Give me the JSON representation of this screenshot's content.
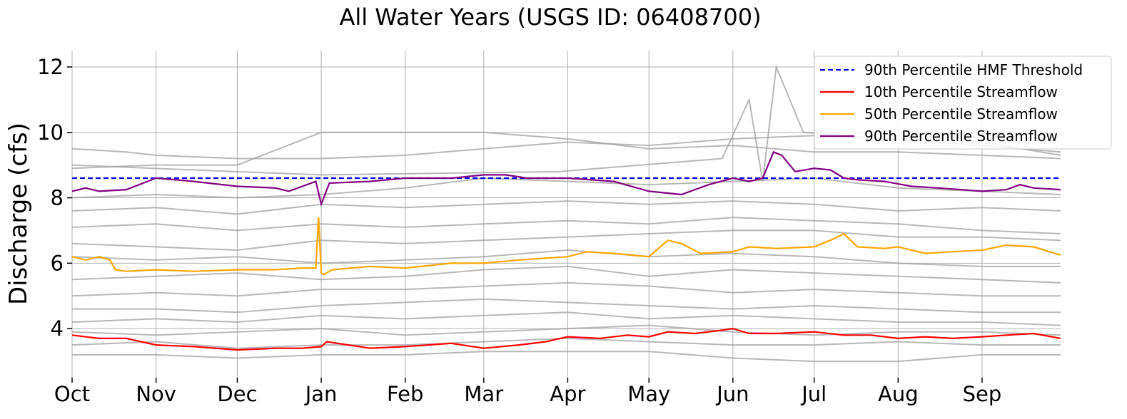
{
  "chart_data": {
    "type": "line",
    "title": "All Water Years (USGS ID: 06408700)",
    "xlabel": "",
    "ylabel": "Discharge (cfs)",
    "xlim": [
      0,
      365
    ],
    "ylim": [
      2.5,
      12.5
    ],
    "x_unit": "day of water year (Oct 1 = 0)",
    "xticks": [
      {
        "label": "Oct",
        "x": 0
      },
      {
        "label": "Nov",
        "x": 31
      },
      {
        "label": "Dec",
        "x": 61
      },
      {
        "label": "Jan",
        "x": 92
      },
      {
        "label": "Feb",
        "x": 123
      },
      {
        "label": "Mar",
        "x": 152
      },
      {
        "label": "Apr",
        "x": 183
      },
      {
        "label": "May",
        "x": 213
      },
      {
        "label": "Jun",
        "x": 244
      },
      {
        "label": "Jul",
        "x": 274
      },
      {
        "label": "Aug",
        "x": 305
      },
      {
        "label": "Sep",
        "x": 336
      }
    ],
    "yticks": [
      4,
      6,
      8,
      10,
      12
    ],
    "grid": true,
    "legend_position": "top-right",
    "series": [
      {
        "name": "90th Percentile HMF Threshold",
        "color": "#0000ff",
        "style": "dashed",
        "x": [
          0,
          365
        ],
        "y": [
          8.6,
          8.6
        ]
      },
      {
        "name": "10th Percentile Streamflow",
        "color": "#ff0000",
        "style": "solid",
        "x": [
          0,
          10,
          20,
          31,
          45,
          61,
          75,
          85,
          92,
          94,
          110,
          123,
          140,
          152,
          165,
          175,
          183,
          195,
          205,
          213,
          220,
          230,
          240,
          244,
          250,
          260,
          274,
          285,
          295,
          305,
          315,
          325,
          336,
          345,
          355,
          365
        ],
        "y": [
          3.8,
          3.7,
          3.7,
          3.5,
          3.45,
          3.35,
          3.4,
          3.4,
          3.45,
          3.6,
          3.4,
          3.45,
          3.55,
          3.4,
          3.5,
          3.6,
          3.75,
          3.7,
          3.8,
          3.75,
          3.9,
          3.85,
          3.95,
          4.0,
          3.85,
          3.85,
          3.9,
          3.8,
          3.8,
          3.7,
          3.75,
          3.7,
          3.75,
          3.8,
          3.85,
          3.7
        ]
      },
      {
        "name": "50th Percentile Streamflow",
        "color": "#ffa500",
        "style": "solid",
        "x": [
          0,
          5,
          10,
          14,
          16,
          20,
          31,
          45,
          61,
          75,
          85,
          90,
          91,
          92,
          93,
          96,
          110,
          123,
          140,
          152,
          165,
          183,
          190,
          200,
          213,
          220,
          225,
          232,
          244,
          250,
          260,
          274,
          280,
          285,
          290,
          300,
          305,
          315,
          325,
          336,
          345,
          355,
          365
        ],
        "y": [
          6.2,
          6.1,
          6.2,
          6.1,
          5.8,
          5.75,
          5.8,
          5.75,
          5.8,
          5.8,
          5.85,
          5.85,
          7.4,
          5.7,
          5.65,
          5.8,
          5.9,
          5.85,
          6.0,
          6.0,
          6.1,
          6.2,
          6.35,
          6.3,
          6.2,
          6.7,
          6.6,
          6.3,
          6.35,
          6.5,
          6.45,
          6.5,
          6.7,
          6.9,
          6.5,
          6.45,
          6.5,
          6.3,
          6.35,
          6.4,
          6.55,
          6.5,
          6.25
        ]
      },
      {
        "name": "90th Percentile Streamflow",
        "color": "#800080",
        "style": "solid",
        "x": [
          0,
          5,
          10,
          20,
          31,
          45,
          61,
          75,
          80,
          90,
          92,
          95,
          110,
          123,
          140,
          152,
          160,
          168,
          183,
          200,
          213,
          225,
          235,
          244,
          250,
          255,
          259,
          262,
          267,
          274,
          280,
          285,
          290,
          300,
          310,
          320,
          336,
          345,
          350,
          355,
          365
        ],
        "y": [
          8.2,
          8.3,
          8.2,
          8.25,
          8.6,
          8.5,
          8.35,
          8.3,
          8.2,
          8.5,
          7.8,
          8.45,
          8.5,
          8.6,
          8.6,
          8.7,
          8.7,
          8.6,
          8.6,
          8.5,
          8.2,
          8.1,
          8.4,
          8.6,
          8.5,
          8.6,
          9.4,
          9.3,
          8.8,
          8.9,
          8.85,
          8.6,
          8.55,
          8.5,
          8.35,
          8.3,
          8.2,
          8.25,
          8.4,
          8.3,
          8.25
        ]
      }
    ],
    "background_series": [
      {
        "x": [
          0,
          20,
          31,
          61,
          92,
          123,
          152,
          183,
          213,
          244,
          274,
          305,
          336,
          365
        ],
        "y": [
          9.5,
          9.4,
          9.3,
          9.2,
          9.2,
          9.3,
          9.5,
          9.7,
          9.6,
          9.8,
          9.9,
          9.8,
          9.7,
          9.3
        ]
      },
      {
        "x": [
          0,
          31,
          61,
          92,
          123,
          152,
          183,
          213,
          244,
          274,
          305,
          336,
          365
        ],
        "y": [
          8.9,
          9.0,
          9.0,
          10.0,
          10.0,
          10.0,
          9.8,
          9.5,
          9.6,
          9.4,
          9.4,
          9.3,
          9.2
        ]
      },
      {
        "x": [
          0,
          31,
          61,
          92,
          123,
          152,
          183,
          213,
          244,
          274,
          305,
          336,
          365
        ],
        "y": [
          8.0,
          8.1,
          8.0,
          8.1,
          8.3,
          8.6,
          8.5,
          8.4,
          8.5,
          8.6,
          8.3,
          8.2,
          8.1
        ]
      },
      {
        "x": [
          0,
          31,
          61,
          92,
          123,
          152,
          183,
          213,
          244,
          274,
          305,
          336,
          365
        ],
        "y": [
          7.6,
          7.7,
          7.5,
          7.8,
          7.7,
          7.8,
          7.9,
          7.8,
          7.9,
          7.8,
          7.6,
          7.7,
          7.6
        ]
      },
      {
        "x": [
          0,
          31,
          61,
          92,
          123,
          152,
          183,
          213,
          244,
          274,
          305,
          336,
          365
        ],
        "y": [
          7.1,
          7.2,
          7.0,
          7.2,
          7.1,
          7.2,
          7.3,
          7.2,
          7.4,
          7.3,
          7.2,
          7.0,
          6.9
        ]
      },
      {
        "x": [
          0,
          31,
          61,
          92,
          123,
          152,
          183,
          213,
          244,
          274,
          305,
          336,
          365
        ],
        "y": [
          6.6,
          6.5,
          6.4,
          6.7,
          6.6,
          6.7,
          6.8,
          6.9,
          7.0,
          7.0,
          6.8,
          6.8,
          6.7
        ]
      },
      {
        "x": [
          0,
          31,
          61,
          92,
          123,
          152,
          183,
          213,
          244,
          274,
          305,
          336,
          365
        ],
        "y": [
          6.2,
          6.1,
          6.2,
          6.0,
          6.1,
          6.2,
          6.4,
          6.2,
          6.3,
          6.2,
          6.0,
          5.9,
          5.9
        ]
      },
      {
        "x": [
          0,
          31,
          61,
          92,
          123,
          152,
          183,
          213,
          244,
          274,
          305,
          336,
          365
        ],
        "y": [
          5.5,
          5.6,
          5.7,
          5.5,
          5.6,
          5.8,
          5.9,
          5.6,
          5.8,
          5.7,
          5.6,
          5.5,
          5.4
        ]
      },
      {
        "x": [
          0,
          31,
          61,
          92,
          123,
          152,
          183,
          213,
          244,
          274,
          305,
          336,
          365
        ],
        "y": [
          5.0,
          5.1,
          5.0,
          5.2,
          5.2,
          5.3,
          5.4,
          5.3,
          5.1,
          5.2,
          5.1,
          5.0,
          5.0
        ]
      },
      {
        "x": [
          0,
          31,
          61,
          92,
          123,
          152,
          183,
          213,
          244,
          274,
          305,
          336,
          365
        ],
        "y": [
          4.6,
          4.6,
          4.5,
          4.7,
          4.8,
          4.9,
          4.8,
          4.7,
          4.6,
          4.7,
          4.6,
          4.5,
          4.5
        ]
      },
      {
        "x": [
          0,
          31,
          61,
          92,
          123,
          152,
          183,
          213,
          244,
          274,
          305,
          336,
          365
        ],
        "y": [
          4.2,
          4.3,
          4.2,
          4.4,
          4.3,
          4.4,
          4.5,
          4.3,
          4.4,
          4.3,
          4.2,
          4.2,
          4.1
        ]
      },
      {
        "x": [
          0,
          31,
          61,
          92,
          123,
          152,
          183,
          213,
          244,
          274,
          305,
          336,
          365
        ],
        "y": [
          3.9,
          3.8,
          3.9,
          4.0,
          3.8,
          3.9,
          4.0,
          4.1,
          3.9,
          3.8,
          3.9,
          3.9,
          3.8
        ]
      },
      {
        "x": [
          0,
          31,
          61,
          92,
          123,
          152,
          183,
          213,
          244,
          274,
          305,
          336,
          365
        ],
        "y": [
          3.5,
          3.6,
          3.4,
          3.5,
          3.5,
          3.6,
          3.7,
          3.6,
          3.5,
          3.5,
          3.6,
          3.5,
          3.5
        ]
      },
      {
        "x": [
          0,
          31,
          61,
          92,
          123,
          152,
          183,
          213,
          244,
          274,
          305,
          336,
          365
        ],
        "y": [
          3.2,
          3.2,
          3.1,
          3.2,
          3.2,
          3.3,
          3.3,
          3.3,
          3.1,
          3.0,
          3.0,
          3.2,
          3.2
        ]
      },
      {
        "x": [
          0,
          60,
          92,
          180,
          240,
          250,
          255,
          260,
          270,
          300,
          336,
          365
        ],
        "y": [
          9.0,
          8.8,
          8.7,
          8.8,
          9.2,
          11.0,
          8.5,
          12.0,
          10.0,
          9.8,
          9.6,
          9.4
        ]
      }
    ]
  }
}
